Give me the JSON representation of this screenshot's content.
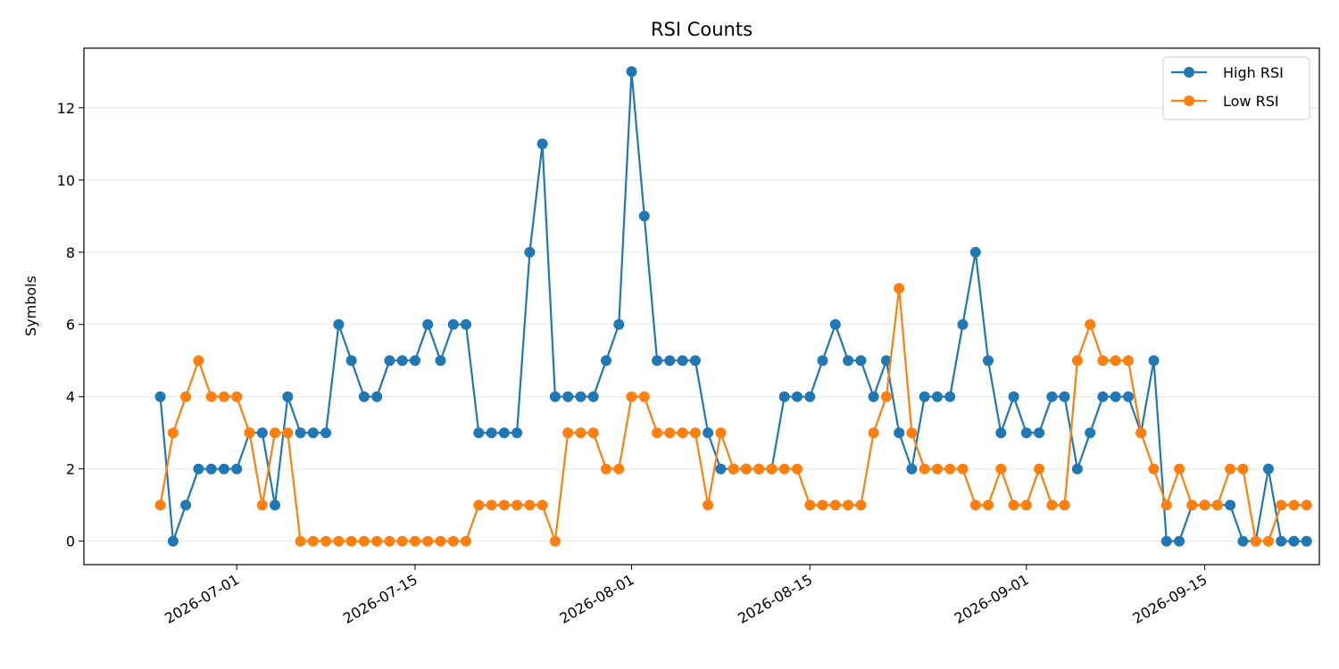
{
  "chart_data": {
    "type": "line",
    "title": "RSI Counts",
    "xlabel": "",
    "ylabel": "Symbols",
    "x_start": "2026-06-25",
    "x_end": "2026-09-20",
    "x_ticks": [
      "2026-07-01",
      "2026-07-15",
      "2026-08-01",
      "2026-08-15",
      "2026-09-01",
      "2026-09-15"
    ],
    "xlim": [
      "2026-06-19",
      "2026-09-24"
    ],
    "y_ticks": [
      0,
      2,
      4,
      6,
      8,
      10,
      12
    ],
    "ylim": [
      -0.65,
      13.65
    ],
    "grid": "horizontal",
    "legend": "top-right",
    "series": [
      {
        "name": "High RSI",
        "color": "#1f77b4",
        "values": [
          4,
          0,
          1,
          2,
          2,
          2,
          2,
          3,
          3,
          1,
          4,
          3,
          3,
          3,
          6,
          5,
          4,
          4,
          5,
          5,
          5,
          6,
          5,
          6,
          6,
          3,
          3,
          3,
          3,
          8,
          11,
          4,
          4,
          4,
          4,
          5,
          6,
          13,
          9,
          5,
          5,
          5,
          5,
          3,
          2,
          2,
          2,
          2,
          2,
          4,
          4,
          4,
          5,
          6,
          5,
          5,
          4,
          5,
          3,
          2,
          4,
          4,
          4,
          6,
          8,
          5,
          3,
          4,
          3,
          3,
          4,
          4,
          2,
          3,
          4,
          4,
          4,
          3,
          5,
          0,
          0,
          1,
          1,
          1,
          1,
          0,
          0,
          2,
          0,
          0,
          0
        ]
      },
      {
        "name": "Low RSI",
        "color": "#ff7f0e",
        "values": [
          1,
          3,
          4,
          5,
          4,
          4,
          4,
          3,
          1,
          3,
          3,
          0,
          0,
          0,
          0,
          0,
          0,
          0,
          0,
          0,
          0,
          0,
          0,
          0,
          0,
          1,
          1,
          1,
          1,
          1,
          1,
          0,
          3,
          3,
          3,
          2,
          2,
          4,
          4,
          3,
          3,
          3,
          3,
          1,
          3,
          2,
          2,
          2,
          2,
          2,
          2,
          1,
          1,
          1,
          1,
          1,
          3,
          4,
          7,
          3,
          2,
          2,
          2,
          2,
          1,
          1,
          2,
          1,
          1,
          2,
          1,
          1,
          5,
          6,
          5,
          5,
          5,
          3,
          2,
          1,
          2,
          1,
          1,
          1,
          2,
          2,
          0,
          0,
          1,
          1,
          1
        ]
      }
    ]
  }
}
